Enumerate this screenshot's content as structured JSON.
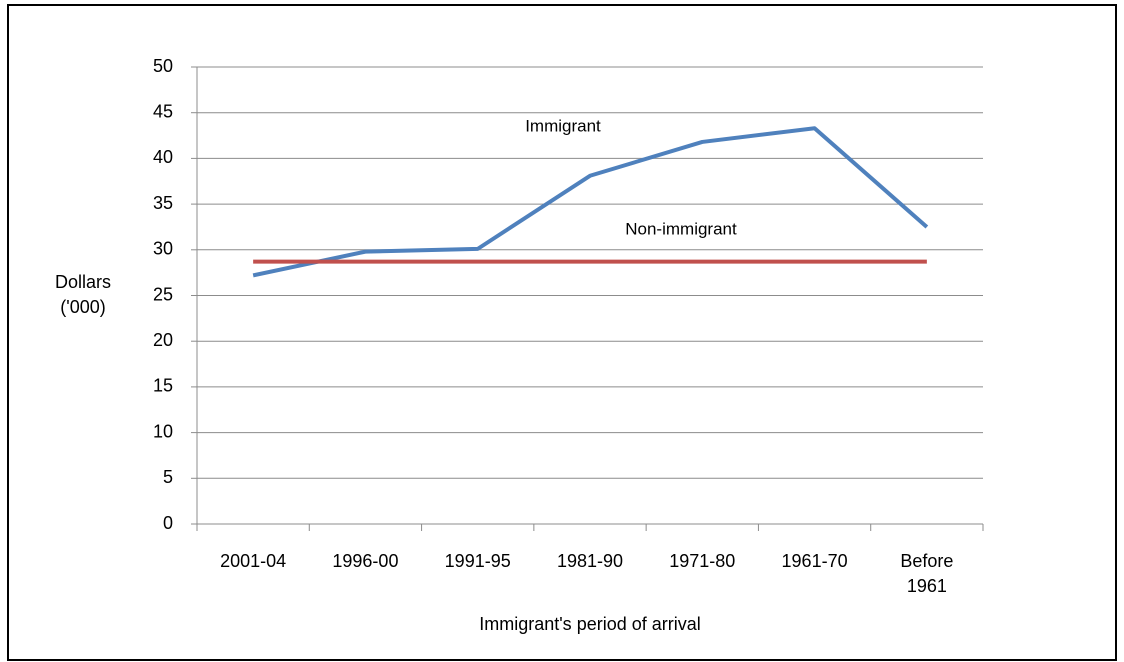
{
  "chart_data": {
    "type": "line",
    "categories": [
      "2001-04",
      "1996-00",
      "1991-95",
      "1981-90",
      "1971-80",
      "1961-70",
      "Before 1961"
    ],
    "series": [
      {
        "name": "Immigrant",
        "color": "#4f81bd",
        "values": [
          27.2,
          29.8,
          30.1,
          38.1,
          41.8,
          43.3,
          32.5
        ]
      },
      {
        "name": "Non-immigrant",
        "color": "#c0504d",
        "values": [
          28.7,
          28.7,
          28.7,
          28.7,
          28.7,
          28.7,
          28.7
        ]
      }
    ],
    "ylim": [
      0,
      50
    ],
    "yticks": [
      0,
      5,
      10,
      15,
      20,
      25,
      30,
      35,
      40,
      45,
      50
    ],
    "y_label": "Dollars ('000)",
    "x_label": "Immigrant's period of arrival",
    "grid": true
  }
}
